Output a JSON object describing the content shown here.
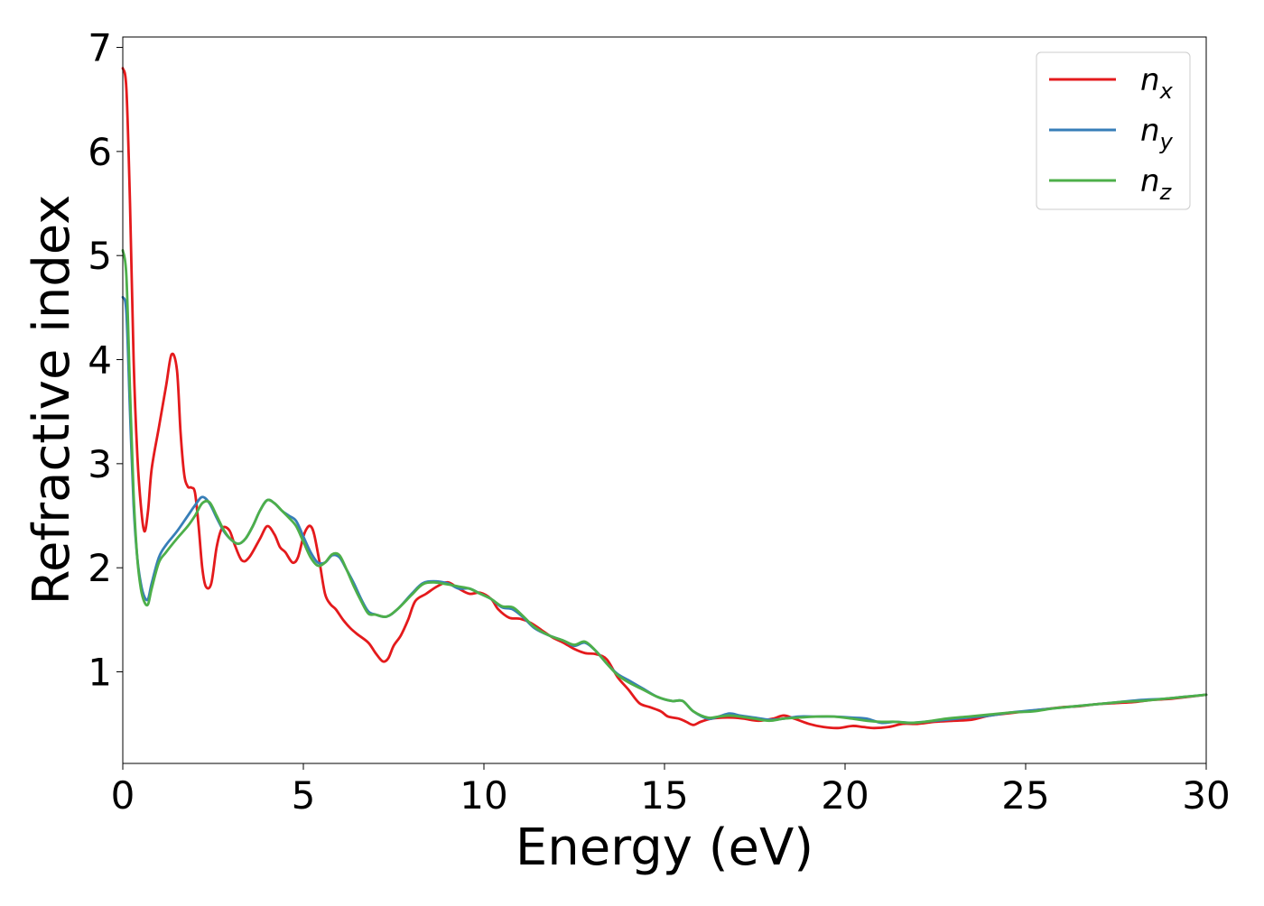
{
  "chart_data": {
    "type": "line",
    "title": "",
    "xlabel": "Energy (eV)",
    "ylabel": "Refractive index",
    "xlim": [
      0,
      30
    ],
    "ylim": [
      0.12,
      7.1
    ],
    "xticks": [
      0,
      5,
      10,
      15,
      20,
      25,
      30
    ],
    "yticks": [
      1,
      2,
      3,
      4,
      5,
      6,
      7
    ],
    "grid": false,
    "legend_position": "top-right",
    "series": [
      {
        "name": "n_x",
        "label_base": "n",
        "label_sub": "x",
        "color": "#e41a1c",
        "x": [
          0,
          0.1,
          0.2,
          0.3,
          0.4,
          0.5,
          0.6,
          0.7,
          0.8,
          1.0,
          1.2,
          1.35,
          1.5,
          1.6,
          1.7,
          1.8,
          1.9,
          2.0,
          2.1,
          2.2,
          2.3,
          2.45,
          2.6,
          2.75,
          2.95,
          3.1,
          3.3,
          3.5,
          3.8,
          4.0,
          4.2,
          4.35,
          4.5,
          4.7,
          4.85,
          5.0,
          5.1,
          5.2,
          5.3,
          5.45,
          5.6,
          5.75,
          5.9,
          6.1,
          6.3,
          6.5,
          6.8,
          7.0,
          7.2,
          7.35,
          7.5,
          7.7,
          7.9,
          8.1,
          8.4,
          8.7,
          9.0,
          9.3,
          9.6,
          9.9,
          10.2,
          10.4,
          10.7,
          11.0,
          11.3,
          11.6,
          11.9,
          12.2,
          12.5,
          12.8,
          13.1,
          13.4,
          13.7,
          14.0,
          14.3,
          14.6,
          14.9,
          15.1,
          15.4,
          15.6,
          15.8,
          16.0,
          16.3,
          16.6,
          16.9,
          17.2,
          17.6,
          18.0,
          18.3,
          18.6,
          19.0,
          19.4,
          19.8,
          20.2,
          20.5,
          20.8,
          21.2,
          21.6,
          22.0,
          22.5,
          23.0,
          23.5,
          24.0,
          24.5,
          25.0,
          25.5,
          26.0,
          26.5,
          27.0,
          27.5,
          28.0,
          28.5,
          29.0,
          29.5,
          30.0
        ],
        "values": [
          6.8,
          6.6,
          5.5,
          4.0,
          3.1,
          2.6,
          2.35,
          2.55,
          2.95,
          3.35,
          3.75,
          4.05,
          3.9,
          3.3,
          2.9,
          2.78,
          2.77,
          2.72,
          2.4,
          2.0,
          1.82,
          1.85,
          2.2,
          2.38,
          2.36,
          2.22,
          2.07,
          2.1,
          2.28,
          2.4,
          2.32,
          2.2,
          2.15,
          2.05,
          2.1,
          2.3,
          2.38,
          2.4,
          2.32,
          2.05,
          1.75,
          1.65,
          1.6,
          1.5,
          1.42,
          1.36,
          1.28,
          1.18,
          1.1,
          1.13,
          1.25,
          1.35,
          1.5,
          1.68,
          1.75,
          1.82,
          1.86,
          1.8,
          1.75,
          1.76,
          1.7,
          1.6,
          1.52,
          1.51,
          1.47,
          1.4,
          1.33,
          1.28,
          1.22,
          1.18,
          1.17,
          1.12,
          0.95,
          0.83,
          0.7,
          0.66,
          0.62,
          0.57,
          0.55,
          0.52,
          0.49,
          0.52,
          0.55,
          0.56,
          0.56,
          0.55,
          0.53,
          0.55,
          0.58,
          0.55,
          0.5,
          0.47,
          0.46,
          0.48,
          0.47,
          0.46,
          0.47,
          0.5,
          0.5,
          0.52,
          0.53,
          0.54,
          0.58,
          0.6,
          0.62,
          0.64,
          0.66,
          0.67,
          0.69,
          0.7,
          0.71,
          0.73,
          0.74,
          0.76,
          0.78
        ]
      },
      {
        "name": "n_y",
        "label_base": "n",
        "label_sub": "y",
        "color": "#377eb8",
        "x": [
          0,
          0.1,
          0.2,
          0.3,
          0.4,
          0.5,
          0.6,
          0.7,
          0.8,
          1.0,
          1.2,
          1.5,
          1.8,
          2.0,
          2.2,
          2.4,
          2.6,
          2.8,
          3.0,
          3.2,
          3.4,
          3.6,
          3.8,
          4.0,
          4.2,
          4.4,
          4.6,
          4.8,
          5.0,
          5.2,
          5.4,
          5.6,
          5.8,
          6.0,
          6.2,
          6.4,
          6.6,
          6.8,
          7.0,
          7.3,
          7.6,
          8.0,
          8.3,
          8.6,
          9.0,
          9.3,
          9.6,
          9.9,
          10.2,
          10.5,
          10.8,
          11.1,
          11.4,
          11.8,
          12.2,
          12.5,
          12.8,
          13.1,
          13.4,
          13.7,
          14.0,
          14.4,
          14.8,
          15.2,
          15.5,
          15.8,
          16.2,
          16.5,
          16.8,
          17.1,
          17.5,
          17.9,
          18.3,
          18.7,
          19.2,
          19.7,
          20.2,
          20.6,
          21.0,
          21.4,
          21.8,
          22.2,
          22.8,
          23.4,
          24.0,
          24.6,
          25.2,
          25.8,
          26.4,
          27.0,
          27.6,
          28.2,
          28.8,
          29.4,
          30.0
        ],
        "values": [
          4.6,
          4.45,
          3.5,
          2.6,
          2.1,
          1.85,
          1.72,
          1.7,
          1.85,
          2.1,
          2.22,
          2.35,
          2.5,
          2.6,
          2.68,
          2.62,
          2.48,
          2.35,
          2.27,
          2.23,
          2.28,
          2.4,
          2.55,
          2.65,
          2.62,
          2.55,
          2.5,
          2.45,
          2.3,
          2.15,
          2.05,
          2.05,
          2.12,
          2.1,
          1.98,
          1.85,
          1.7,
          1.58,
          1.55,
          1.53,
          1.6,
          1.75,
          1.85,
          1.87,
          1.85,
          1.8,
          1.8,
          1.75,
          1.7,
          1.62,
          1.6,
          1.52,
          1.42,
          1.35,
          1.3,
          1.25,
          1.28,
          1.2,
          1.08,
          0.98,
          0.92,
          0.84,
          0.76,
          0.72,
          0.72,
          0.62,
          0.55,
          0.57,
          0.6,
          0.58,
          0.56,
          0.54,
          0.55,
          0.57,
          0.57,
          0.57,
          0.56,
          0.55,
          0.51,
          0.52,
          0.51,
          0.52,
          0.54,
          0.56,
          0.58,
          0.61,
          0.63,
          0.65,
          0.67,
          0.69,
          0.71,
          0.73,
          0.74,
          0.76,
          0.78
        ]
      },
      {
        "name": "n_z",
        "label_base": "n",
        "label_sub": "z",
        "color": "#4daf4a",
        "x": [
          0,
          0.1,
          0.2,
          0.3,
          0.4,
          0.5,
          0.6,
          0.7,
          0.8,
          1.0,
          1.2,
          1.5,
          1.8,
          2.0,
          2.2,
          2.4,
          2.6,
          2.8,
          3.0,
          3.2,
          3.4,
          3.6,
          3.8,
          4.0,
          4.2,
          4.4,
          4.6,
          4.8,
          5.0,
          5.2,
          5.4,
          5.6,
          5.8,
          6.0,
          6.2,
          6.4,
          6.6,
          6.8,
          7.0,
          7.3,
          7.6,
          8.0,
          8.3,
          8.6,
          9.0,
          9.3,
          9.6,
          9.9,
          10.2,
          10.5,
          10.8,
          11.1,
          11.4,
          11.8,
          12.2,
          12.5,
          12.8,
          13.1,
          13.4,
          13.7,
          14.0,
          14.4,
          14.8,
          15.2,
          15.5,
          15.8,
          16.2,
          16.5,
          16.8,
          17.1,
          17.5,
          17.9,
          18.3,
          18.7,
          19.2,
          19.7,
          20.2,
          20.6,
          21.0,
          21.4,
          21.8,
          22.2,
          22.8,
          23.4,
          24.0,
          24.6,
          25.2,
          25.8,
          26.4,
          27.0,
          27.6,
          28.2,
          28.8,
          29.4,
          30.0
        ],
        "values": [
          5.05,
          4.8,
          3.7,
          2.7,
          2.1,
          1.8,
          1.67,
          1.65,
          1.8,
          2.05,
          2.15,
          2.28,
          2.4,
          2.5,
          2.62,
          2.63,
          2.5,
          2.36,
          2.27,
          2.23,
          2.28,
          2.4,
          2.55,
          2.65,
          2.62,
          2.55,
          2.48,
          2.4,
          2.25,
          2.1,
          2.02,
          2.05,
          2.13,
          2.12,
          1.98,
          1.82,
          1.68,
          1.56,
          1.55,
          1.53,
          1.6,
          1.74,
          1.84,
          1.86,
          1.84,
          1.82,
          1.8,
          1.75,
          1.7,
          1.63,
          1.62,
          1.53,
          1.43,
          1.35,
          1.3,
          1.26,
          1.29,
          1.2,
          1.08,
          0.97,
          0.9,
          0.83,
          0.76,
          0.72,
          0.72,
          0.62,
          0.56,
          0.57,
          0.58,
          0.57,
          0.55,
          0.53,
          0.55,
          0.56,
          0.57,
          0.57,
          0.55,
          0.53,
          0.52,
          0.52,
          0.51,
          0.52,
          0.55,
          0.57,
          0.59,
          0.61,
          0.62,
          0.65,
          0.67,
          0.69,
          0.71,
          0.72,
          0.74,
          0.76,
          0.78
        ]
      }
    ]
  }
}
